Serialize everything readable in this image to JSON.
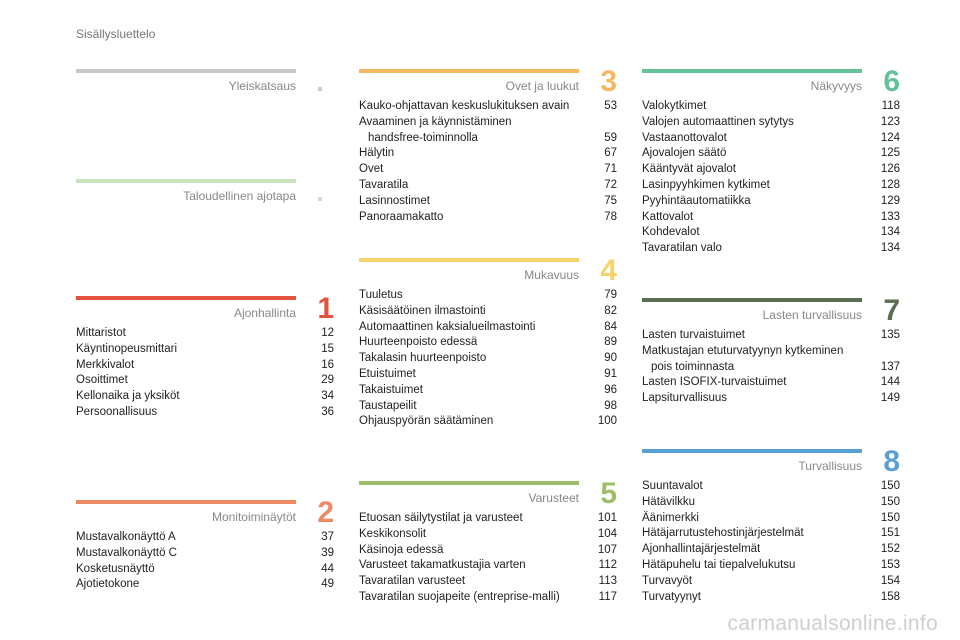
{
  "page_label": "Sisällysluettelo",
  "watermark": "carmanualsonline.info",
  "sections": [
    {
      "id": "yleiskatsaus",
      "title": "Yleiskatsaus",
      "number": "",
      "color": "#c8c8c8",
      "entries": []
    },
    {
      "id": "taloudellinen",
      "title": "Taloudellinen ajotapa",
      "number": "",
      "color": "#c9e3bf",
      "entries": []
    },
    {
      "id": "ajonhallinta",
      "title": "Ajonhallinta",
      "number": "1",
      "color": "#e2523e",
      "entries": [
        {
          "text": "Mittaristot",
          "page": "12"
        },
        {
          "text": "Käyntinopeusmittari",
          "page": "15"
        },
        {
          "text": "Merkkivalot",
          "page": "16"
        },
        {
          "text": "Osoittimet",
          "page": "29"
        },
        {
          "text": "Kellonaika ja yksiköt",
          "page": "34"
        },
        {
          "text": "Persoonallisuus",
          "page": "36"
        }
      ]
    },
    {
      "id": "monitoiminaytot",
      "title": "Monitoiminäytöt",
      "number": "2",
      "color": "#ec8a63",
      "entries": [
        {
          "text": "Mustavalkonäyttö A",
          "page": "37"
        },
        {
          "text": "Mustavalkonäyttö C",
          "page": "39"
        },
        {
          "text": "Kosketusnäyttö",
          "page": "44"
        },
        {
          "text": "Ajotietokone",
          "page": "49"
        }
      ]
    },
    {
      "id": "ovet",
      "title": "Ovet ja luukut",
      "number": "3",
      "color": "#f6b85e",
      "entries": [
        {
          "text": "Kauko-ohjattavan keskuslukituksen avain",
          "page": "53"
        },
        {
          "text": "Avaaminen ja käynnistäminen hands­free-toiminnolla",
          "page": "59"
        },
        {
          "text": "Hälytin",
          "page": "67"
        },
        {
          "text": "Ovet",
          "page": "71"
        },
        {
          "text": "Tavaratila",
          "page": "72"
        },
        {
          "text": "Lasinnostimet",
          "page": "75"
        },
        {
          "text": "Panoraamakatto",
          "page": "78"
        }
      ]
    },
    {
      "id": "mukavuus",
      "title": "Mukavuus",
      "number": "4",
      "color": "#f7d36b",
      "entries": [
        {
          "text": "Tuuletus",
          "page": "79"
        },
        {
          "text": "Käsisäätöinen ilmastointi",
          "page": "82"
        },
        {
          "text": "Automaattinen kaksialueilmastointi",
          "page": "84"
        },
        {
          "text": "Huurteenpoisto edessä",
          "page": "89"
        },
        {
          "text": "Takalasin huurteenpoisto",
          "page": "90"
        },
        {
          "text": "Etuistuimet",
          "page": "91"
        },
        {
          "text": "Takaistuimet",
          "page": "96"
        },
        {
          "text": "Taustapeilit",
          "page": "98"
        },
        {
          "text": "Ohjauspyörän säätäminen",
          "page": "100"
        }
      ]
    },
    {
      "id": "varusteet",
      "title": "Varusteet",
      "number": "5",
      "color": "#9dbf6a",
      "entries": [
        {
          "text": "Etuosan säilytystilat ja varusteet",
          "page": "101"
        },
        {
          "text": "Keskikonsolit",
          "page": "104"
        },
        {
          "text": "Käsinoja edessä",
          "page": "107"
        },
        {
          "text": "Varusteet takamatkustajia varten",
          "page": "112"
        },
        {
          "text": "Tavaratilan varusteet",
          "page": "113"
        },
        {
          "text": "Tavaratilan suojapeite (entreprise-malli)",
          "page": "117"
        }
      ]
    },
    {
      "id": "nakyvyys",
      "title": "Näkyvyys",
      "number": "6",
      "color": "#63c29a",
      "entries": [
        {
          "text": "Valokytkimet",
          "page": "118"
        },
        {
          "text": "Valojen automaattinen sytytys",
          "page": "123"
        },
        {
          "text": "Vastaanottovalot",
          "page": "124"
        },
        {
          "text": "Ajovalojen säätö",
          "page": "125"
        },
        {
          "text": "Kääntyvät ajovalot",
          "page": "126"
        },
        {
          "text": "Lasinpyyhkimen kytkimet",
          "page": "128"
        },
        {
          "text": "Pyyhintäautomatiikka",
          "page": "129"
        },
        {
          "text": "Kattovalot",
          "page": "133"
        },
        {
          "text": "Kohdevalot",
          "page": "134"
        },
        {
          "text": "Tavaratilan valo",
          "page": "134"
        }
      ]
    },
    {
      "id": "lasten",
      "title": "Lasten turvallisuus",
      "number": "7",
      "color": "#5b6e52",
      "entries": [
        {
          "text": "Lasten turvaistuimet",
          "page": "135"
        },
        {
          "text": "Matkustajan etuturvatyynyn kytkeminen pois toiminnasta",
          "page": "137"
        },
        {
          "text": "Lasten ISOFIX-turvaistuimet",
          "page": "144"
        },
        {
          "text": "Lapsiturvallisuus",
          "page": "149"
        }
      ]
    },
    {
      "id": "turvallisuus",
      "title": "Turvallisuus",
      "number": "8",
      "color": "#5ba0d4",
      "entries": [
        {
          "text": "Suuntavalot",
          "page": "150"
        },
        {
          "text": "Hätävilkku",
          "page": "150"
        },
        {
          "text": "Äänimerkki",
          "page": "150"
        },
        {
          "text": "Hätäjarrutustehostinjärjestelmät",
          "page": "151"
        },
        {
          "text": "Ajonhallintajärjestelmät",
          "page": "152"
        },
        {
          "text": "Hätäpuhelu tai tiepalvelukutsu",
          "page": "153"
        },
        {
          "text": "Turvavyöt",
          "page": "154"
        },
        {
          "text": "Turvatyynyt",
          "page": "158"
        }
      ]
    }
  ]
}
